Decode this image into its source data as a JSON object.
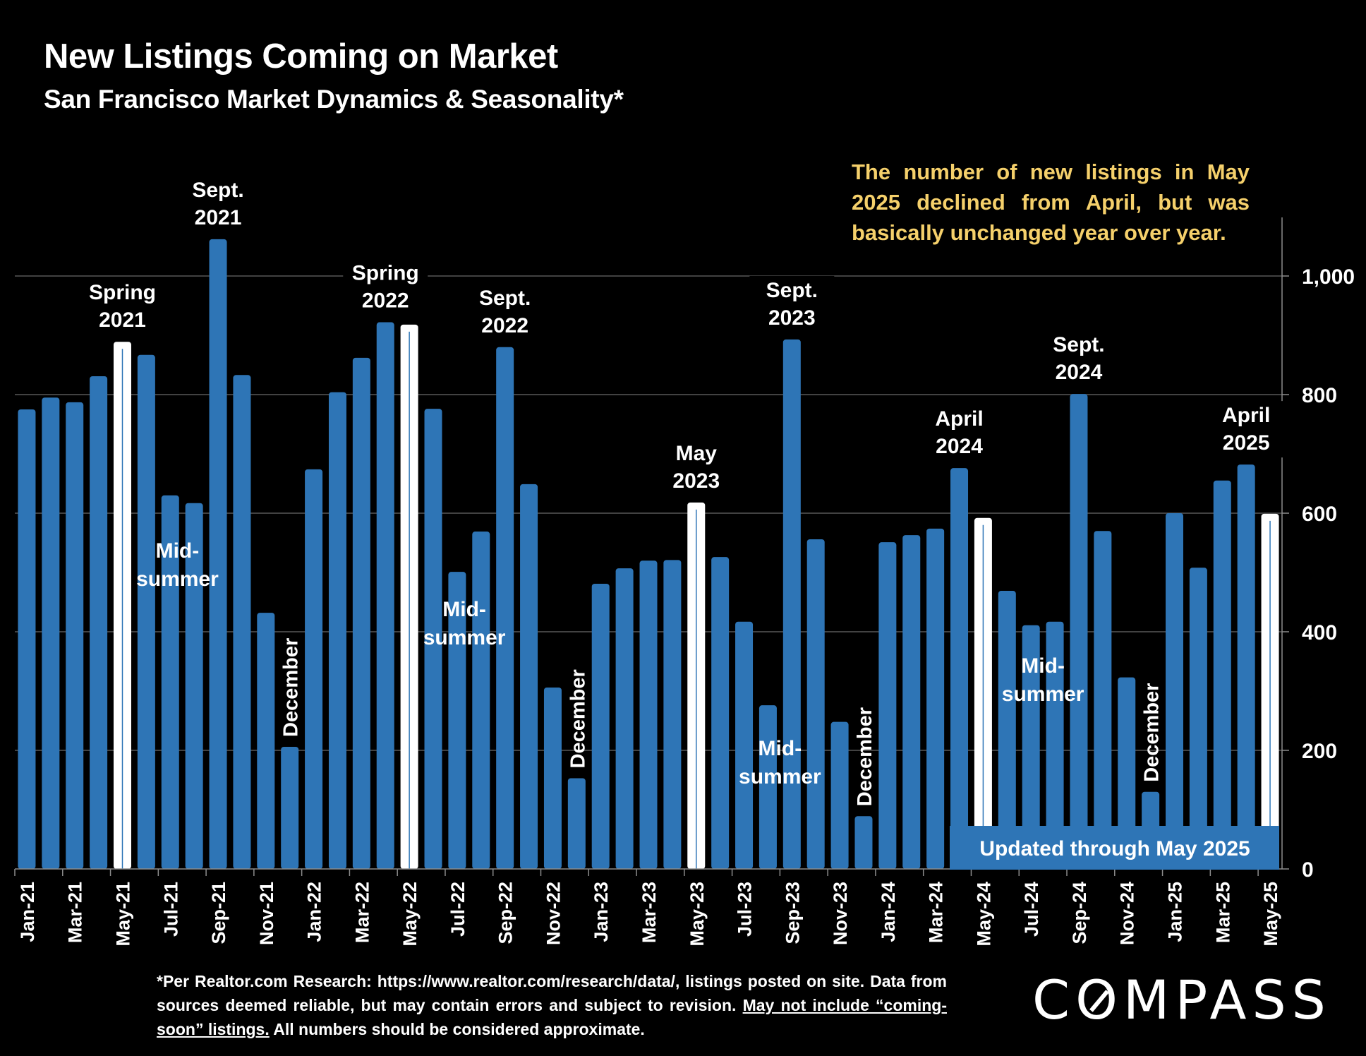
{
  "header": {
    "title": "New Listings Coming on Market",
    "subtitle": "San Francisco Market Dynamics & Seasonality*"
  },
  "callout": "The number of new listings in May 2025 declined from April, but was basically unchanged year over year.",
  "updated_badge": "Updated through May 2025",
  "footer": {
    "line_main": "*Per Realtor.com Research:  https://www.realtor.com/research/data/, listings posted on site. Data from sources deemed reliable, but may contain errors and subject to revision. ",
    "underlined": "May not include “coming-soon” listings.",
    "tail": " All numbers should be considered approximate."
  },
  "logo": {
    "pre": "C",
    "o": "O",
    "post": "MPASS"
  },
  "colors": {
    "bar": "#2e75b6",
    "highlight": "#ffffff",
    "callout": "#f5d06b",
    "grid": "#595959",
    "background": "#000000"
  },
  "chart_data": {
    "type": "bar",
    "title": "New Listings Coming on Market",
    "subtitle": "San Francisco Market Dynamics & Seasonality*",
    "xlabel": "",
    "ylabel": "",
    "ylim": [
      0,
      1000
    ],
    "y_ticks": [
      "0",
      "200",
      "400",
      "600",
      "800",
      "1,000"
    ],
    "y_tick_values": [
      0,
      200,
      400,
      600,
      800,
      1000
    ],
    "y_axis_side": "right",
    "grid": true,
    "categories": [
      "Jan-21",
      "Feb-21",
      "Mar-21",
      "Apr-21",
      "May-21",
      "Jun-21",
      "Jul-21",
      "Aug-21",
      "Sep-21",
      "Oct-21",
      "Nov-21",
      "Dec-21",
      "Jan-22",
      "Feb-22",
      "Mar-22",
      "Apr-22",
      "May-22",
      "Jun-22",
      "Jul-22",
      "Aug-22",
      "Sep-22",
      "Oct-22",
      "Nov-22",
      "Dec-22",
      "Jan-23",
      "Feb-23",
      "Mar-23",
      "Apr-23",
      "May-23",
      "Jun-23",
      "Jul-23",
      "Aug-23",
      "Sep-23",
      "Oct-23",
      "Nov-23",
      "Dec-23",
      "Jan-24",
      "Feb-24",
      "Mar-24",
      "Apr-24",
      "May-24",
      "Jun-24",
      "Jul-24",
      "Aug-24",
      "Sep-24",
      "Oct-24",
      "Nov-24",
      "Dec-24",
      "Jan-25",
      "Feb-25",
      "Mar-25",
      "Apr-25",
      "May-25"
    ],
    "x_tick_labels_every": 2,
    "values": [
      775,
      795,
      787,
      831,
      889,
      867,
      630,
      617,
      1062,
      833,
      432,
      206,
      674,
      804,
      862,
      922,
      918,
      776,
      501,
      569,
      880,
      649,
      306,
      153,
      481,
      507,
      520,
      521,
      618,
      526,
      417,
      276,
      893,
      556,
      248,
      89,
      551,
      563,
      574,
      676,
      592,
      469,
      411,
      417,
      801,
      570,
      323,
      130,
      600,
      508,
      655,
      682,
      599
    ],
    "highlighted": [
      "May-21",
      "May-22",
      "May-23",
      "May-24",
      "May-25"
    ],
    "annotations": [
      {
        "text": [
          "Spring",
          "2021"
        ],
        "category": "May-21",
        "type": "above"
      },
      {
        "text": [
          "Sept.",
          "2021"
        ],
        "category": "Sep-21",
        "type": "above"
      },
      {
        "text": [
          "Mid-",
          "summer"
        ],
        "category": "Jul-21",
        "type": "inside"
      },
      {
        "text": [
          "December"
        ],
        "category": "Dec-21",
        "type": "vertical"
      },
      {
        "text": [
          "Spring",
          "2022"
        ],
        "category": "Apr-22",
        "type": "above"
      },
      {
        "text": [
          "Sept.",
          "2022"
        ],
        "category": "Sep-22",
        "type": "above"
      },
      {
        "text": [
          "Mid-",
          "summer"
        ],
        "category": "Jul-22",
        "type": "inside"
      },
      {
        "text": [
          "December"
        ],
        "category": "Dec-22",
        "type": "vertical"
      },
      {
        "text": [
          "May",
          "2023"
        ],
        "category": "May-23",
        "type": "above"
      },
      {
        "text": [
          "Sept.",
          "2023"
        ],
        "category": "Sep-23",
        "type": "above"
      },
      {
        "text": [
          "Mid-",
          "summer"
        ],
        "category": "Aug-23",
        "type": "inside"
      },
      {
        "text": [
          "December"
        ],
        "category": "Dec-23",
        "type": "vertical"
      },
      {
        "text": [
          "April",
          "2024"
        ],
        "category": "Apr-24",
        "type": "above"
      },
      {
        "text": [
          "Sept.",
          "2024"
        ],
        "category": "Sep-24",
        "type": "above"
      },
      {
        "text": [
          "Mid-",
          "summer"
        ],
        "category": "Jul-24",
        "type": "inside"
      },
      {
        "text": [
          "December"
        ],
        "category": "Dec-24",
        "type": "vertical"
      },
      {
        "text": [
          "April",
          "2025"
        ],
        "category": "Apr-25",
        "type": "above"
      }
    ]
  }
}
